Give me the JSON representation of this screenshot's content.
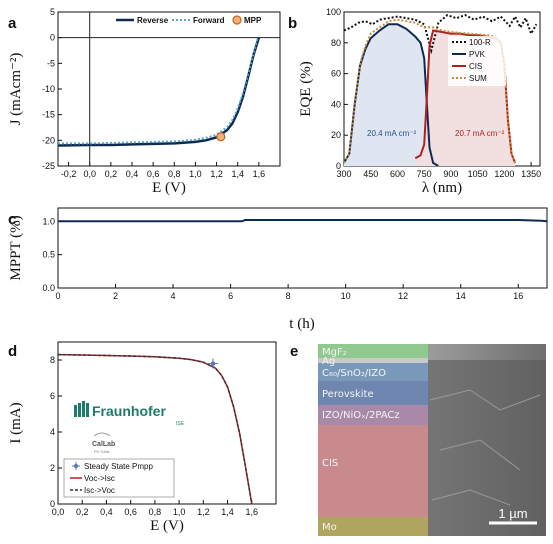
{
  "colors": {
    "reverse": "#0f2a52",
    "forward": "#5aa7c8",
    "mpp_fill": "#f3b07a",
    "mpp_edge": "#c0661f",
    "r100": "#111111",
    "pvk": "#0f2a52",
    "cis": "#b01f1f",
    "sum": "#c98a3a",
    "pvk_text": "#1d4f9a",
    "cis_text": "#b01f1f",
    "mppt": "#0f2a52",
    "d_steady": "#5a74b8",
    "d_voc_isc": "#b01f1f",
    "d_isc_voc": "#333333",
    "fraunhofer": "#1e7b6a"
  },
  "chart_data": [
    {
      "panel": "a",
      "type": "line",
      "xlabel": "E (V)",
      "ylabel": "J (mAcm⁻²)",
      "xlim": [
        -0.3,
        1.8
      ],
      "ylim": [
        -25,
        5
      ],
      "xticks": [
        -0.2,
        0.0,
        0.2,
        0.4,
        0.6,
        0.8,
        1.0,
        1.2,
        1.4,
        1.6
      ],
      "xtick_labels": [
        "-0,2",
        "0,0",
        "0,2",
        "0,4",
        "0,6",
        "0,8",
        "1,0",
        "1,2",
        "1,4",
        "1,6"
      ],
      "yticks": [
        -25,
        -20,
        -15,
        -10,
        -5,
        0,
        5
      ],
      "ytick_labels": [
        "-25",
        "-20",
        "-15",
        "-10",
        "-5",
        "0",
        "5"
      ],
      "legend": [
        "Reverse",
        "Forward",
        "MPP"
      ],
      "series": [
        {
          "name": "Reverse",
          "style": "solid",
          "x": [
            -0.3,
            0.0,
            0.2,
            0.4,
            0.6,
            0.8,
            1.0,
            1.1,
            1.2,
            1.3,
            1.35,
            1.4,
            1.45,
            1.5,
            1.55,
            1.6
          ],
          "y": [
            -21.0,
            -20.9,
            -20.9,
            -20.8,
            -20.7,
            -20.6,
            -20.3,
            -20.0,
            -19.4,
            -18.0,
            -16.7,
            -14.5,
            -11.5,
            -7.5,
            -3.3,
            0.0
          ]
        },
        {
          "name": "Forward",
          "style": "dotted",
          "x": [
            -0.3,
            0.0,
            0.2,
            0.4,
            0.6,
            0.8,
            1.0,
            1.1,
            1.2,
            1.3,
            1.35,
            1.4,
            1.45,
            1.5,
            1.55,
            1.59
          ],
          "y": [
            -20.6,
            -20.6,
            -20.5,
            -20.4,
            -20.3,
            -20.2,
            -19.9,
            -19.5,
            -18.9,
            -17.4,
            -16.0,
            -13.8,
            -10.8,
            -7.0,
            -3.0,
            0.0
          ]
        }
      ],
      "mpp": {
        "x": 1.24,
        "y": -19.3
      }
    },
    {
      "panel": "b",
      "type": "line",
      "xlabel": "λ (nm)",
      "ylabel": "EQE (%)",
      "xlim": [
        300,
        1400
      ],
      "ylim": [
        0,
        100
      ],
      "xticks": [
        300,
        450,
        600,
        750,
        900,
        1050,
        1200,
        1350
      ],
      "xtick_labels": [
        "300",
        "450",
        "600",
        "750",
        "900",
        "1050",
        "1200",
        "1350"
      ],
      "yticks": [
        0,
        20,
        40,
        60,
        80,
        100
      ],
      "ytick_labels": [
        "0",
        "20",
        "40",
        "60",
        "80",
        "100"
      ],
      "legend": [
        "100-R",
        "PVK",
        "CIS",
        "SUM"
      ],
      "series": [
        {
          "name": "100-R",
          "style": "dotted",
          "x": [
            300,
            340,
            380,
            420,
            460,
            500,
            550,
            600,
            650,
            700,
            750,
            790,
            830,
            880,
            930,
            980,
            1030,
            1080,
            1130,
            1180,
            1230,
            1260,
            1290,
            1320,
            1350,
            1380
          ],
          "y": [
            88,
            90,
            93,
            94,
            92,
            95,
            96,
            97,
            96,
            95,
            92,
            75,
            93,
            98,
            96,
            98,
            95,
            97,
            94,
            97,
            91,
            97,
            90,
            96,
            86,
            92
          ]
        },
        {
          "name": "PVK",
          "style": "solid",
          "x": [
            300,
            330,
            360,
            390,
            420,
            450,
            500,
            550,
            600,
            650,
            700,
            730,
            750,
            765,
            780,
            800,
            830
          ],
          "y": [
            2,
            8,
            40,
            65,
            76,
            83,
            88,
            92,
            92,
            89,
            84,
            80,
            70,
            40,
            12,
            2,
            0
          ]
        },
        {
          "name": "CIS",
          "style": "solid",
          "x": [
            700,
            730,
            750,
            765,
            780,
            800,
            850,
            900,
            950,
            1000,
            1050,
            1100,
            1150,
            1180,
            1200,
            1220,
            1240,
            1260
          ],
          "y": [
            5,
            7,
            14,
            45,
            78,
            88,
            87,
            86,
            86,
            85,
            85,
            84,
            83,
            80,
            66,
            30,
            8,
            2
          ]
        },
        {
          "name": "SUM",
          "style": "dotted",
          "x": [
            300,
            330,
            360,
            390,
            420,
            450,
            500,
            550,
            600,
            650,
            700,
            750,
            800,
            850,
            900,
            1000,
            1100,
            1150,
            1180,
            1200,
            1220,
            1240,
            1260
          ],
          "y": [
            2,
            8,
            40,
            66,
            78,
            86,
            90,
            94,
            95,
            94,
            93,
            90,
            90,
            88,
            87,
            86,
            85,
            84,
            80,
            66,
            30,
            8,
            2
          ]
        }
      ],
      "annotations": [
        {
          "text": "20.4 mA cm⁻²",
          "x": 480,
          "y": 30,
          "series": "PVK"
        },
        {
          "text": "20.7 mA cm⁻²",
          "x": 1000,
          "y": 30,
          "series": "CIS"
        }
      ]
    },
    {
      "panel": "c",
      "type": "line",
      "xlabel": "t (h)",
      "ylabel": "MPPT (%)",
      "xlim": [
        0,
        17
      ],
      "ylim": [
        0,
        1.2
      ],
      "xticks": [
        0,
        2,
        4,
        6,
        8,
        10,
        12,
        14,
        16
      ],
      "xtick_labels": [
        "0",
        "2",
        "4",
        "6",
        "8",
        "10",
        "12",
        "14",
        "16"
      ],
      "yticks": [
        0.0,
        0.5,
        1.0
      ],
      "ytick_labels": [
        "0.0",
        "0.5",
        "1.0"
      ],
      "series": [
        {
          "name": "MPPT",
          "style": "solid",
          "x": [
            0,
            2,
            4,
            6,
            6.4,
            6.5,
            8,
            10,
            12,
            14,
            16,
            16.8,
            17
          ],
          "y": [
            1.0,
            1.0,
            1.0,
            1.0,
            1.0,
            1.02,
            1.02,
            1.02,
            1.02,
            1.02,
            1.02,
            1.01,
            1.0
          ]
        }
      ]
    },
    {
      "panel": "d",
      "type": "line",
      "xlabel": "E (V)",
      "ylabel": "I (mA)",
      "xlim": [
        0,
        1.8
      ],
      "ylim": [
        0,
        9
      ],
      "xticks": [
        0.0,
        0.2,
        0.4,
        0.6,
        0.8,
        1.0,
        1.2,
        1.4,
        1.6
      ],
      "xtick_labels": [
        "0,0",
        "0,2",
        "0,4",
        "0,6",
        "0,8",
        "1,0",
        "1,2",
        "1,4",
        "1,6"
      ],
      "yticks": [
        0,
        2,
        4,
        6,
        8
      ],
      "ytick_labels": [
        "0",
        "2",
        "4",
        "6",
        "8"
      ],
      "legend": [
        "Steady State Pmpp",
        "Voc->Isc",
        "Isc->Voc"
      ],
      "series": [
        {
          "name": "Voc->Isc",
          "style": "solid",
          "x": [
            0.0,
            0.2,
            0.4,
            0.6,
            0.8,
            1.0,
            1.1,
            1.2,
            1.3,
            1.35,
            1.4,
            1.45,
            1.5,
            1.55,
            1.6
          ],
          "y": [
            8.3,
            8.28,
            8.25,
            8.22,
            8.18,
            8.1,
            8.02,
            7.88,
            7.55,
            7.15,
            6.5,
            5.4,
            3.9,
            2.0,
            0.0
          ]
        },
        {
          "name": "Isc->Voc",
          "style": "dashed",
          "x": [
            0.0,
            0.2,
            0.4,
            0.6,
            0.8,
            1.0,
            1.1,
            1.2,
            1.3,
            1.35,
            1.4,
            1.45,
            1.5,
            1.55,
            1.6
          ],
          "y": [
            8.3,
            8.28,
            8.25,
            8.22,
            8.18,
            8.1,
            8.02,
            7.88,
            7.55,
            7.15,
            6.5,
            5.4,
            3.9,
            2.0,
            0.0
          ]
        }
      ],
      "steady_state": {
        "x": 1.28,
        "y": 7.8
      },
      "logos": {
        "fraunhofer": "Fraunhofer",
        "fraunhofer_sub": "ISE",
        "callab": "CalLab",
        "callab_sub": "PV Cells"
      }
    }
  ],
  "panel_e": {
    "tag": "e",
    "layers": [
      "MgF₂",
      "Ag",
      "C₆₀/SnO₂/IZO",
      "Perovskite",
      "IZO/NiOₓ/2PACz",
      "CIS",
      "Mo"
    ],
    "scalebar": "1 µm"
  },
  "panel_tags": [
    "a",
    "b",
    "c",
    "d"
  ]
}
